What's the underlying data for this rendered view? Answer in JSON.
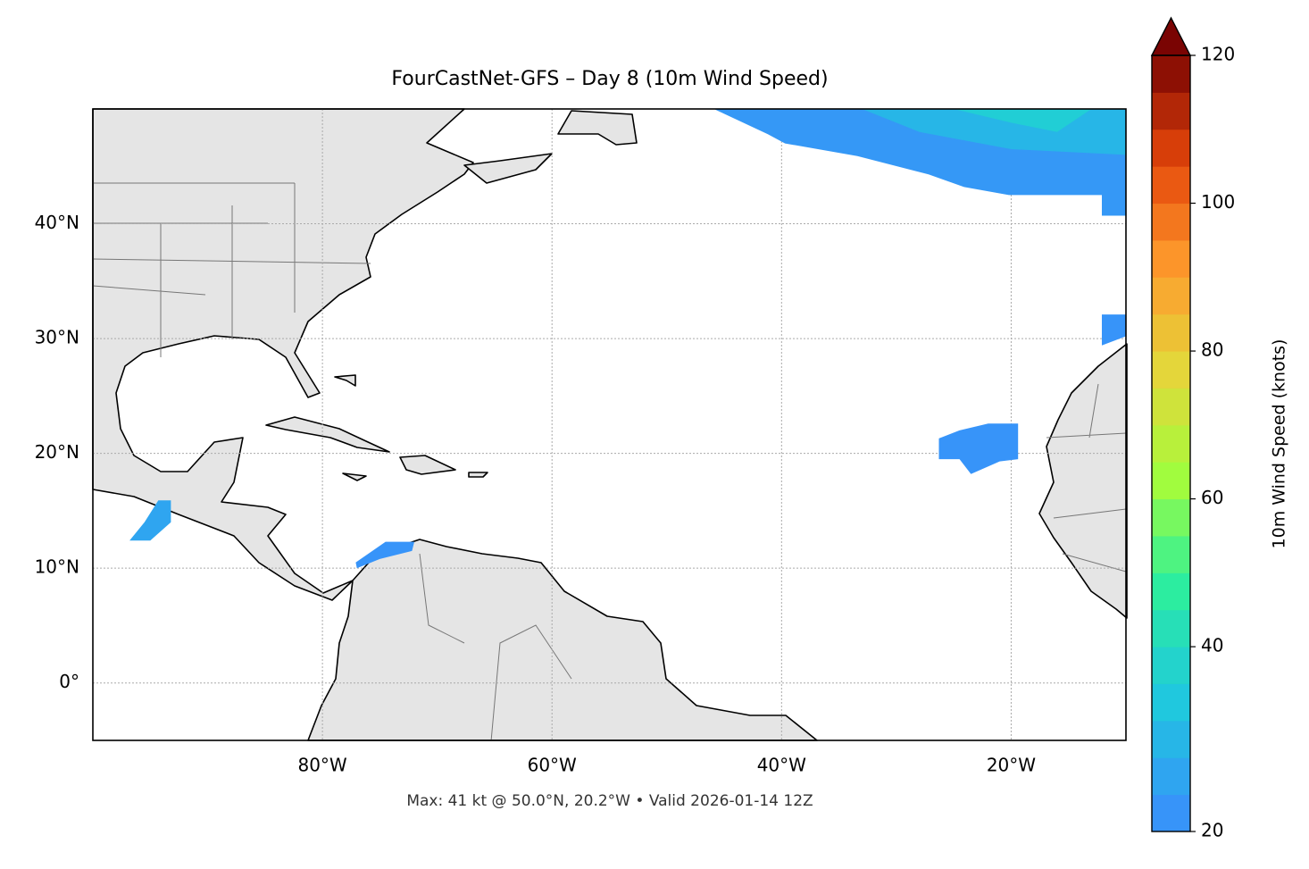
{
  "chart_data": {
    "type": "map",
    "title": "FourCastNet-GFS – Day 8 (10m Wind Speed)",
    "footer": "Max: 41 kt @ 50.0°N, 20.2°W • Valid 2026-01-14 12Z",
    "xlim": [
      -100,
      -10
    ],
    "ylim": [
      -5,
      50
    ],
    "xticks": [
      {
        "value": -80,
        "label": "80°W"
      },
      {
        "value": -60,
        "label": "60°W"
      },
      {
        "value": -40,
        "label": "40°W"
      },
      {
        "value": -20,
        "label": "20°W"
      }
    ],
    "yticks": [
      {
        "value": 0,
        "label": "0°"
      },
      {
        "value": 10,
        "label": "10°N"
      },
      {
        "value": 20,
        "label": "20°N"
      },
      {
        "value": 30,
        "label": "30°N"
      },
      {
        "value": 40,
        "label": "40°N"
      }
    ],
    "grid": true,
    "colorbar": {
      "label": "10m Wind Speed (knots)",
      "levels": [
        20,
        24,
        28,
        32,
        36,
        40,
        45,
        50,
        55,
        60,
        65,
        70,
        75,
        80,
        85,
        90,
        95,
        100,
        105,
        110,
        115,
        120
      ],
      "ticks": [
        20,
        40,
        60,
        80,
        100,
        120
      ],
      "colormap": [
        "#3b8bfd",
        "#1fc9dd",
        "#2df09b",
        "#a4fc3c",
        "#e3d73a",
        "#fe9b2d",
        "#e4460a",
        "#7a0403"
      ],
      "extend": "max"
    },
    "wind_areas": [
      {
        "speed": 23,
        "lon": [
          -45.9,
          -41.2,
          -39.7,
          -33.4,
          -27.2,
          -24.1,
          -20.2,
          -12.1,
          -12.1,
          -10,
          -10
        ],
        "lat": [
          50,
          47.8,
          47.0,
          45.9,
          44.3,
          43.2,
          42.5,
          42.5,
          40.7,
          40.7,
          50
        ]
      },
      {
        "speed": 30,
        "lon": [
          -33,
          -10,
          -10,
          -20,
          -28
        ],
        "lat": [
          50,
          50,
          46,
          46.5,
          48
        ]
      },
      {
        "speed": 36,
        "lon": [
          -25,
          -13,
          -16,
          -20
        ],
        "lat": [
          50,
          50,
          48,
          48.8
        ]
      },
      {
        "speed": 22,
        "lon": [
          -26.3,
          -24.5,
          -22,
          -19.4,
          -19.4,
          -21,
          -23.5,
          -24.5,
          -26.3
        ],
        "lat": [
          21.3,
          22,
          22.6,
          22.6,
          19.5,
          19.3,
          18.2,
          19.5,
          19.5
        ]
      },
      {
        "speed": 22,
        "lon": [
          -12.1,
          -10,
          -10,
          -12.1
        ],
        "lat": [
          32.1,
          32.1,
          30.2,
          29.4
        ]
      },
      {
        "speed": 26,
        "lon": [
          -96.8,
          -95.5,
          -94.3,
          -93.2,
          -93.2,
          -95
        ],
        "lat": [
          12.4,
          14,
          15.9,
          15.9,
          14,
          12.4
        ]
      },
      {
        "speed": 22,
        "lon": [
          -77.1,
          -74.5,
          -72,
          -72.2,
          -75,
          -77
        ],
        "lat": [
          10.5,
          12.3,
          12.3,
          11.5,
          10.8,
          10
        ]
      }
    ]
  }
}
